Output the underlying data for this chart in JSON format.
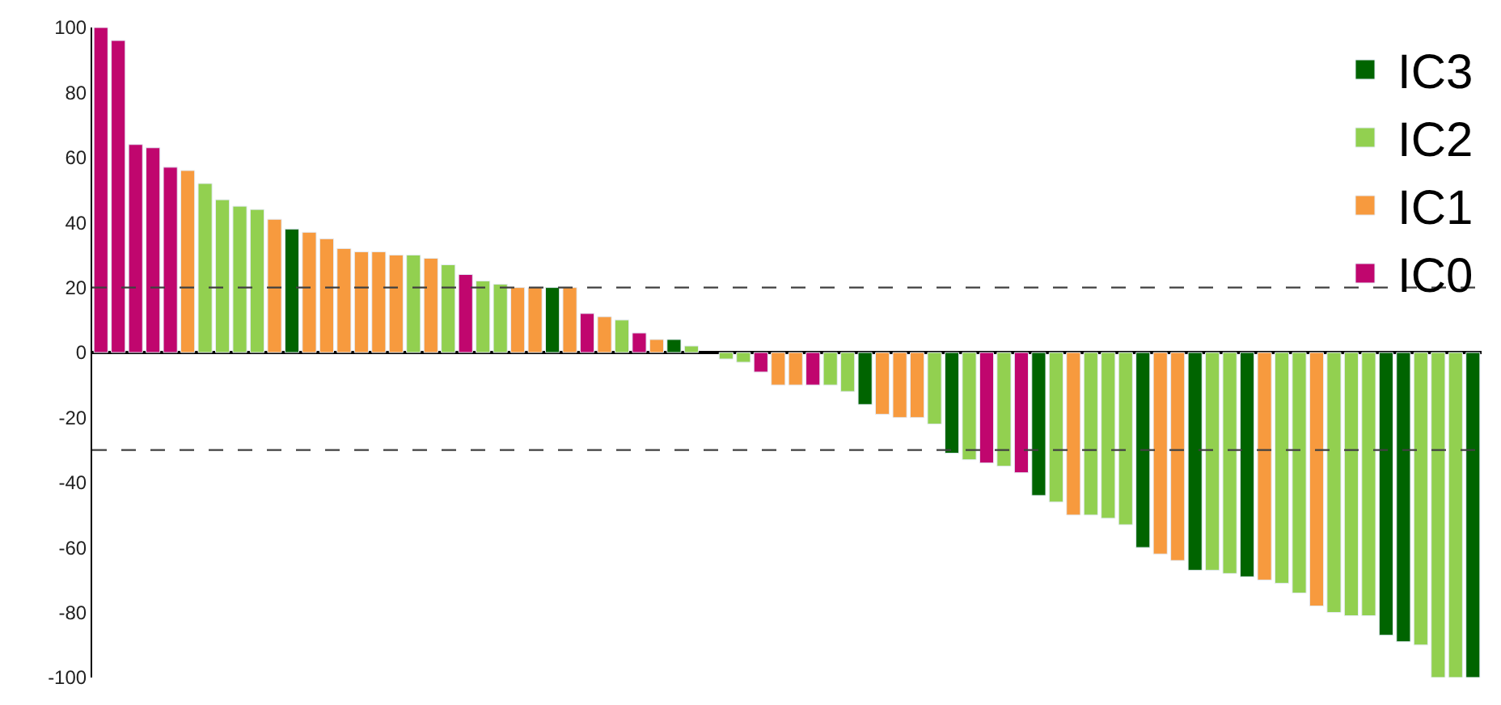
{
  "chart_data": {
    "type": "bar",
    "stacked": true,
    "categories": [
      null,
      null,
      null,
      null,
      null,
      null,
      null,
      null,
      null,
      null,
      null,
      null,
      null,
      null,
      null,
      null,
      null,
      null,
      null,
      null,
      null,
      null,
      null,
      null,
      null,
      null,
      null,
      null,
      null,
      null,
      null,
      null,
      null,
      null,
      null,
      null,
      null,
      null,
      null,
      null,
      null,
      null,
      null,
      null,
      null,
      null,
      null,
      null,
      null,
      null,
      null,
      null,
      null,
      null,
      null,
      null,
      null,
      null,
      null,
      null,
      null,
      null,
      null,
      null,
      null,
      null,
      null,
      null,
      null,
      null,
      null,
      null,
      null,
      null,
      null,
      null,
      null,
      null,
      null,
      null
    ],
    "series": [
      {
        "name": "IC3",
        "color": "#006400",
        "values": [
          null,
          null,
          null,
          null,
          null,
          null,
          null,
          null,
          null,
          null,
          null,
          38,
          null,
          null,
          null,
          null,
          null,
          null,
          null,
          null,
          null,
          null,
          null,
          null,
          null,
          null,
          20,
          null,
          null,
          null,
          null,
          null,
          null,
          4,
          null,
          null,
          null,
          null,
          null,
          null,
          null,
          null,
          null,
          null,
          -16,
          null,
          null,
          null,
          null,
          -31,
          null,
          null,
          null,
          null,
          -44,
          null,
          null,
          null,
          null,
          null,
          -60,
          null,
          null,
          -67,
          null,
          null,
          -69,
          null,
          null,
          null,
          null,
          null,
          null,
          null,
          -87,
          -89,
          null,
          null,
          null,
          -100
        ]
      },
      {
        "name": "IC2",
        "color": "#92d050",
        "values": [
          null,
          null,
          null,
          null,
          null,
          null,
          52,
          47,
          45,
          44,
          null,
          null,
          null,
          null,
          null,
          null,
          null,
          null,
          30,
          null,
          27,
          null,
          22,
          21,
          null,
          null,
          null,
          null,
          null,
          null,
          10,
          null,
          null,
          null,
          2,
          null,
          -2,
          -3,
          null,
          null,
          null,
          null,
          -10,
          -12,
          null,
          null,
          null,
          null,
          -22,
          null,
          -33,
          null,
          -35,
          null,
          null,
          -46,
          null,
          -50,
          -51,
          -53,
          null,
          null,
          null,
          null,
          -67,
          -68,
          null,
          null,
          -71,
          -74,
          null,
          -80,
          -81,
          -81,
          null,
          null,
          -90,
          -100,
          -100,
          null
        ]
      },
      {
        "name": "IC1",
        "color": "#f79a3e",
        "values": [
          null,
          null,
          null,
          null,
          null,
          56,
          null,
          null,
          null,
          null,
          41,
          null,
          37,
          35,
          32,
          31,
          31,
          30,
          null,
          29,
          null,
          null,
          null,
          null,
          20,
          20,
          null,
          20,
          null,
          11,
          null,
          null,
          4,
          null,
          null,
          null,
          null,
          null,
          null,
          -10,
          -10,
          null,
          null,
          null,
          null,
          -19,
          -20,
          -20,
          null,
          null,
          null,
          null,
          null,
          null,
          null,
          null,
          -50,
          null,
          null,
          null,
          null,
          -62,
          -64,
          null,
          null,
          null,
          null,
          -70,
          null,
          null,
          -78,
          null,
          null,
          null,
          null,
          null,
          null,
          null,
          null,
          null
        ]
      },
      {
        "name": "IC0",
        "color": "#c0066e",
        "values": [
          100,
          96,
          64,
          63,
          57,
          null,
          null,
          null,
          null,
          null,
          null,
          null,
          null,
          null,
          null,
          null,
          null,
          null,
          null,
          null,
          null,
          24,
          null,
          null,
          null,
          null,
          null,
          null,
          12,
          null,
          null,
          6,
          null,
          null,
          null,
          null,
          null,
          null,
          -6,
          null,
          null,
          -10,
          null,
          null,
          null,
          null,
          null,
          null,
          null,
          null,
          null,
          -34,
          null,
          -37,
          null,
          null,
          null,
          null,
          null,
          null,
          null,
          null,
          null,
          null,
          null,
          null,
          null,
          null,
          null,
          null,
          null,
          null,
          null,
          null,
          null,
          null,
          null,
          null,
          null,
          null
        ]
      }
    ],
    "ylim": [
      -100,
      100
    ],
    "yticks": [
      -100,
      -80,
      -60,
      -40,
      -20,
      0,
      20,
      40,
      60,
      80,
      100
    ],
    "ref_lines": [
      {
        "axis": "y",
        "value": 20,
        "line_style": "dashed"
      },
      {
        "axis": "y",
        "value": -30,
        "line_style": "dashed"
      }
    ],
    "legend": "top right",
    "tick_labels": "y"
  }
}
